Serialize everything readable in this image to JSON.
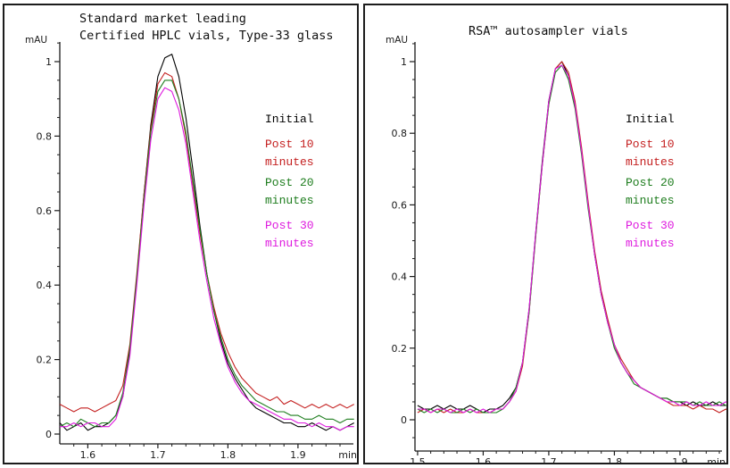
{
  "page": {
    "background": "#ffffff",
    "axis_color": "#1a1a1a"
  },
  "chart_data": [
    {
      "type": "line",
      "title": "Standard market leading Certified HPLC vials, Type-33 glass",
      "title_lines": [
        "Standard market leading",
        "Certified HPLC vials, Type-33 glass"
      ],
      "xlabel": "min",
      "ylabel": "mAU",
      "xlim": [
        1.56,
        1.98
      ],
      "ylim": [
        -0.03,
        1.05
      ],
      "xticks": [
        1.6,
        1.7,
        1.8,
        1.9
      ],
      "yticks": [
        0,
        0.2,
        0.4,
        0.6,
        0.8,
        1
      ],
      "minor_x_step": 0.02,
      "minor_y_step": 0.05,
      "grid": false,
      "legend_position": "inside-right",
      "legend": [
        {
          "lines": [
            "Initial"
          ]
        },
        {
          "lines": [
            "Post 10",
            "minutes"
          ]
        },
        {
          "lines": [
            "Post 20",
            "minutes"
          ]
        },
        {
          "lines": [
            "Post 30",
            "minutes"
          ]
        }
      ],
      "x": [
        1.56,
        1.57,
        1.58,
        1.59,
        1.6,
        1.61,
        1.62,
        1.63,
        1.64,
        1.65,
        1.66,
        1.67,
        1.68,
        1.69,
        1.7,
        1.71,
        1.72,
        1.73,
        1.74,
        1.75,
        1.76,
        1.77,
        1.78,
        1.79,
        1.8,
        1.81,
        1.82,
        1.83,
        1.84,
        1.85,
        1.86,
        1.87,
        1.88,
        1.89,
        1.9,
        1.91,
        1.92,
        1.93,
        1.94,
        1.95,
        1.96,
        1.97,
        1.98
      ],
      "series": [
        {
          "name": "Initial",
          "color": "#000000",
          "peak_mau": 1.02,
          "peak_min": 1.72,
          "values": [
            0.03,
            0.01,
            0.02,
            0.03,
            0.01,
            0.02,
            0.02,
            0.03,
            0.05,
            0.1,
            0.22,
            0.42,
            0.64,
            0.83,
            0.96,
            1.01,
            1.02,
            0.96,
            0.85,
            0.71,
            0.56,
            0.43,
            0.33,
            0.25,
            0.19,
            0.15,
            0.12,
            0.09,
            0.07,
            0.06,
            0.05,
            0.04,
            0.03,
            0.03,
            0.02,
            0.02,
            0.03,
            0.02,
            0.01,
            0.02,
            0.01,
            0.02,
            0.03
          ]
        },
        {
          "name": "Post 10 minutes",
          "color": "#c41f1f",
          "peak_mau": 0.97,
          "peak_min": 1.715,
          "values": [
            0.08,
            0.07,
            0.06,
            0.07,
            0.07,
            0.06,
            0.07,
            0.08,
            0.09,
            0.13,
            0.24,
            0.43,
            0.64,
            0.82,
            0.94,
            0.97,
            0.96,
            0.9,
            0.8,
            0.67,
            0.54,
            0.43,
            0.34,
            0.27,
            0.22,
            0.18,
            0.15,
            0.13,
            0.11,
            0.1,
            0.09,
            0.1,
            0.08,
            0.09,
            0.08,
            0.07,
            0.08,
            0.07,
            0.08,
            0.07,
            0.08,
            0.07,
            0.08
          ]
        },
        {
          "name": "Post 20 minutes",
          "color": "#1e7d1e",
          "peak_mau": 0.95,
          "peak_min": 1.715,
          "values": [
            0.02,
            0.03,
            0.02,
            0.04,
            0.03,
            0.02,
            0.03,
            0.03,
            0.05,
            0.11,
            0.23,
            0.42,
            0.63,
            0.81,
            0.92,
            0.95,
            0.95,
            0.9,
            0.81,
            0.68,
            0.55,
            0.43,
            0.33,
            0.26,
            0.2,
            0.16,
            0.13,
            0.11,
            0.09,
            0.08,
            0.07,
            0.06,
            0.06,
            0.05,
            0.05,
            0.04,
            0.04,
            0.05,
            0.04,
            0.04,
            0.03,
            0.04,
            0.04
          ]
        },
        {
          "name": "Post 30 minutes",
          "color": "#de1ade",
          "peak_mau": 0.93,
          "peak_min": 1.71,
          "values": [
            0.02,
            0.02,
            0.03,
            0.02,
            0.03,
            0.03,
            0.02,
            0.02,
            0.04,
            0.1,
            0.21,
            0.4,
            0.61,
            0.79,
            0.9,
            0.93,
            0.92,
            0.87,
            0.78,
            0.65,
            0.52,
            0.41,
            0.31,
            0.24,
            0.18,
            0.14,
            0.11,
            0.09,
            0.08,
            0.07,
            0.06,
            0.05,
            0.04,
            0.04,
            0.03,
            0.03,
            0.02,
            0.03,
            0.02,
            0.02,
            0.01,
            0.02,
            0.02
          ]
        }
      ]
    },
    {
      "type": "line",
      "title": "RSA™ autosampler vials",
      "title_lines": [
        "RSA™ autosampler vials"
      ],
      "xlabel": "min",
      "ylabel": "mAU",
      "xlim": [
        1.5,
        1.98
      ],
      "ylim": [
        -0.09,
        1.05
      ],
      "xticks": [
        1.5,
        1.6,
        1.7,
        1.8,
        1.9
      ],
      "yticks": [
        0,
        0.2,
        0.4,
        0.6,
        0.8,
        1
      ],
      "minor_x_step": 0.02,
      "minor_y_step": 0.05,
      "grid": false,
      "legend_position": "inside-right",
      "legend": [
        {
          "lines": [
            "Initial"
          ]
        },
        {
          "lines": [
            "Post 10",
            "minutes"
          ]
        },
        {
          "lines": [
            "Post 20",
            "minutes"
          ]
        },
        {
          "lines": [
            "Post 30",
            "minutes"
          ]
        }
      ],
      "x": [
        1.5,
        1.51,
        1.52,
        1.53,
        1.54,
        1.55,
        1.56,
        1.57,
        1.58,
        1.59,
        1.6,
        1.61,
        1.62,
        1.63,
        1.64,
        1.65,
        1.66,
        1.67,
        1.68,
        1.69,
        1.7,
        1.71,
        1.72,
        1.73,
        1.74,
        1.75,
        1.76,
        1.77,
        1.78,
        1.79,
        1.8,
        1.81,
        1.82,
        1.83,
        1.84,
        1.85,
        1.86,
        1.87,
        1.88,
        1.89,
        1.9,
        1.91,
        1.92,
        1.93,
        1.94,
        1.95,
        1.96,
        1.97,
        1.98
      ],
      "series": [
        {
          "name": "Initial",
          "color": "#000000",
          "peak_mau": 1.0,
          "peak_min": 1.72,
          "values": [
            0.04,
            0.03,
            0.03,
            0.04,
            0.03,
            0.04,
            0.03,
            0.03,
            0.04,
            0.03,
            0.02,
            0.03,
            0.03,
            0.04,
            0.06,
            0.09,
            0.16,
            0.31,
            0.52,
            0.72,
            0.89,
            0.98,
            1.0,
            0.96,
            0.88,
            0.75,
            0.6,
            0.46,
            0.35,
            0.27,
            0.21,
            0.16,
            0.13,
            0.11,
            0.09,
            0.08,
            0.07,
            0.06,
            0.06,
            0.05,
            0.05,
            0.04,
            0.05,
            0.04,
            0.04,
            0.05,
            0.04,
            0.04,
            0.04
          ]
        },
        {
          "name": "Post 10 minutes",
          "color": "#c41f1f",
          "peak_mau": 1.0,
          "peak_min": 1.72,
          "values": [
            0.02,
            0.03,
            0.02,
            0.03,
            0.02,
            0.03,
            0.02,
            0.02,
            0.03,
            0.02,
            0.02,
            0.02,
            0.03,
            0.03,
            0.05,
            0.08,
            0.15,
            0.3,
            0.51,
            0.71,
            0.88,
            0.98,
            1.0,
            0.97,
            0.89,
            0.76,
            0.61,
            0.47,
            0.36,
            0.28,
            0.21,
            0.17,
            0.14,
            0.11,
            0.09,
            0.08,
            0.07,
            0.06,
            0.05,
            0.04,
            0.04,
            0.04,
            0.03,
            0.04,
            0.03,
            0.03,
            0.02,
            0.03,
            0.02
          ]
        },
        {
          "name": "Post 20 minutes",
          "color": "#1e7d1e",
          "peak_mau": 0.99,
          "peak_min": 1.72,
          "values": [
            0.03,
            0.02,
            0.03,
            0.02,
            0.03,
            0.02,
            0.02,
            0.03,
            0.02,
            0.03,
            0.02,
            0.02,
            0.02,
            0.03,
            0.05,
            0.09,
            0.16,
            0.3,
            0.51,
            0.71,
            0.88,
            0.97,
            0.99,
            0.95,
            0.87,
            0.74,
            0.59,
            0.46,
            0.35,
            0.27,
            0.2,
            0.16,
            0.13,
            0.1,
            0.09,
            0.08,
            0.07,
            0.06,
            0.06,
            0.05,
            0.05,
            0.05,
            0.04,
            0.05,
            0.04,
            0.04,
            0.05,
            0.04,
            0.04
          ]
        },
        {
          "name": "Post 30 minutes",
          "color": "#de1ade",
          "peak_mau": 0.99,
          "peak_min": 1.72,
          "values": [
            0.03,
            0.03,
            0.02,
            0.03,
            0.03,
            0.02,
            0.03,
            0.02,
            0.03,
            0.02,
            0.03,
            0.02,
            0.03,
            0.03,
            0.05,
            0.08,
            0.16,
            0.31,
            0.52,
            0.71,
            0.89,
            0.98,
            0.99,
            0.96,
            0.88,
            0.75,
            0.6,
            0.46,
            0.35,
            0.27,
            0.21,
            0.16,
            0.13,
            0.11,
            0.09,
            0.08,
            0.07,
            0.06,
            0.05,
            0.05,
            0.04,
            0.05,
            0.04,
            0.04,
            0.05,
            0.04,
            0.04,
            0.05,
            0.04
          ]
        }
      ]
    }
  ]
}
